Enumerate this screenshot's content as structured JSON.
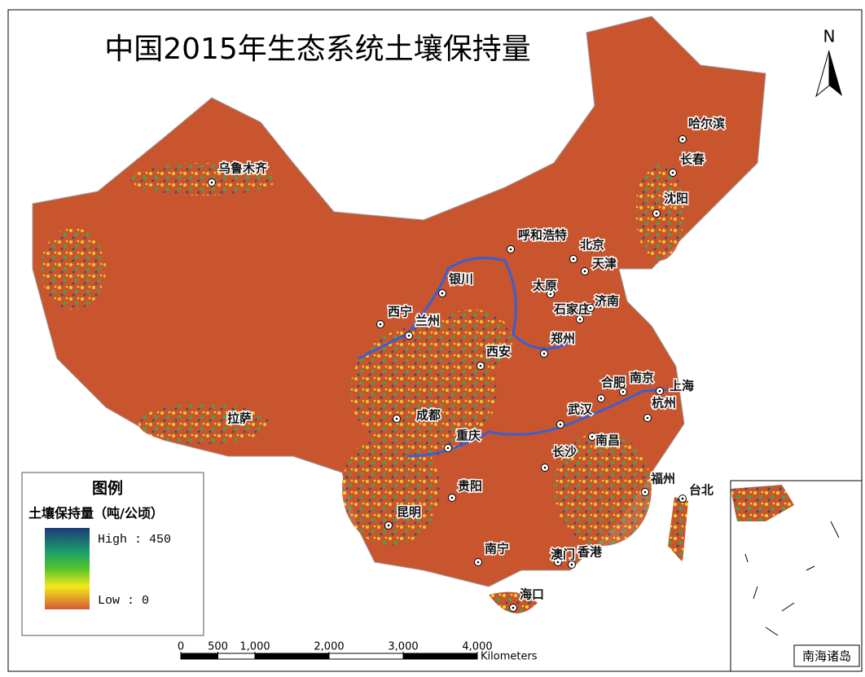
{
  "title": "中国2015年生态系统土壤保持量",
  "north": "N",
  "cities": [
    "乌鲁木齐",
    "哈尔滨",
    "长春",
    "沈阳",
    "呼和浩特",
    "北京",
    "天津",
    "银川",
    "太原",
    "石家庄",
    "济南",
    "西宁",
    "兰州",
    "郑州",
    "西安",
    "合肥",
    "南京",
    "上海",
    "杭州",
    "成都",
    "武汉",
    "拉萨",
    "重庆",
    "长沙",
    "南昌",
    "福州",
    "台北",
    "贵阳",
    "昆明",
    "南宁",
    "澳门",
    "香港",
    "海口"
  ],
  "legend": {
    "title": "图例",
    "subtitle": "土壤保持量（吨/公顷）",
    "high": "High : 450",
    "low": "Low : 0"
  },
  "scale_bar": {
    "unit": "Kilometers",
    "ticks": [
      0,
      500,
      {
        "value": 1000,
        "label": "1,000"
      },
      {
        "value": 2000,
        "label": "2,000"
      },
      {
        "value": 3000,
        "label": "3,000"
      },
      {
        "value": 4000,
        "label": "4,000"
      }
    ]
  },
  "inset": "南海诸岛"
}
